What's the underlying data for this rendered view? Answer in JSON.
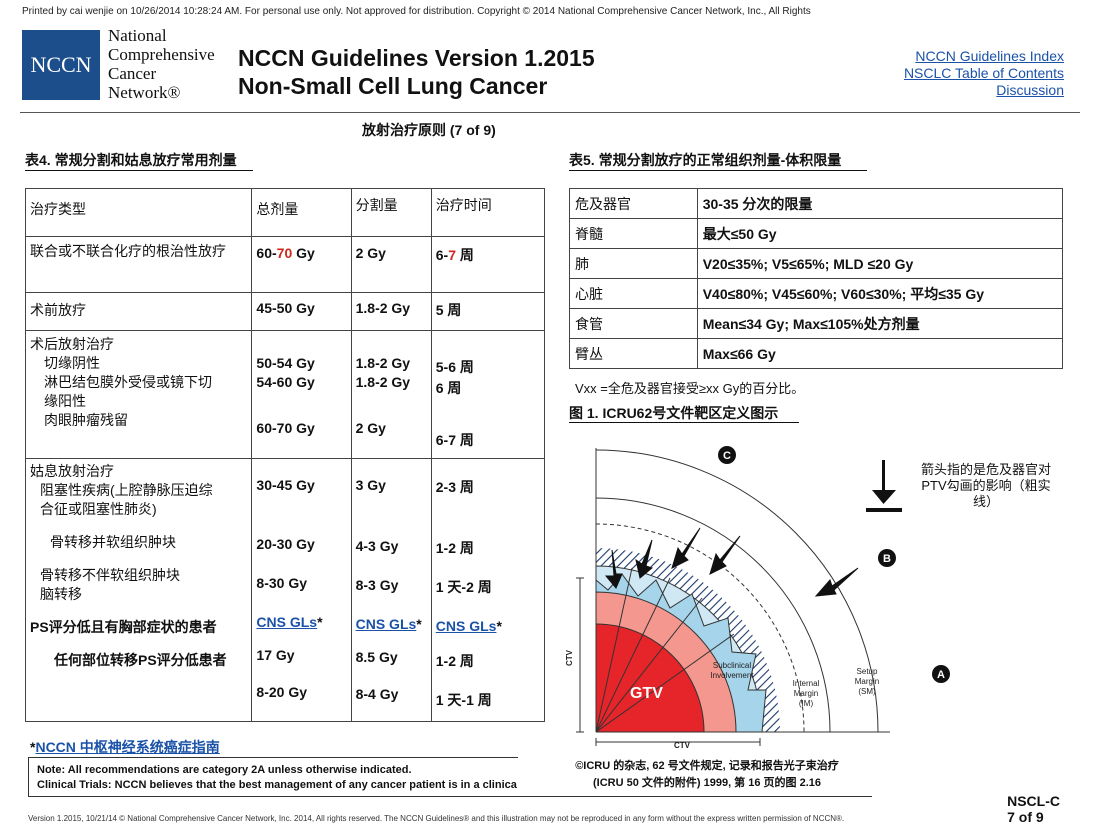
{
  "print_notice": "Printed by cai wenjie on 10/26/2014 10:28:24 AM. For personal use only. Not approved for distribution. Copyright © 2014 National Comprehensive Cancer Network, Inc., All Rights Reserved.",
  "logo": {
    "abbr": "NCCN",
    "lines": [
      "National",
      "Comprehensive",
      "Cancer",
      "Network®"
    ]
  },
  "header": {
    "title_line1": "NCCN Guidelines Version 1.2015",
    "title_line2": "Non-Small Cell Lung Cancer",
    "links": [
      "NCCN Guidelines Index",
      "NSCLC Table of Contents",
      "Discussion"
    ]
  },
  "page_subtitle": "放射治疗原则 (7 of 9)",
  "table4": {
    "title": "表4. 常规分割和姑息放疗常用剂量",
    "headers": [
      "治疗类型",
      "总剂量",
      "分割量",
      "治疗时间"
    ],
    "row1": {
      "type": "联合或不联合化疗的根治性放疗",
      "dose_a": "60-",
      "dose_b": "70",
      "dose_c": " Gy",
      "fraction": "2 Gy",
      "time_a": "6-",
      "time_b": "7",
      "time_c": " 周"
    },
    "row2": {
      "type": "术前放疗",
      "dose": "45-50 Gy",
      "fraction": "1.8-2 Gy",
      "time": "5 周"
    },
    "row3": {
      "type_lines": [
        "术后放射治疗",
        "切缘阴性",
        "淋巴结包膜外受侵或镜下切",
        "缘阳性",
        "肉眼肿瘤残留"
      ],
      "dose_lines": [
        "",
        "50-54 Gy",
        "54-60 Gy",
        "",
        "",
        "60-70 Gy"
      ],
      "fraction_lines": [
        "",
        "1.8-2 Gy",
        "1.8-2 Gy",
        "",
        "",
        "2 Gy"
      ],
      "time_lines": [
        "",
        "5-6 周",
        "6 周",
        "",
        "",
        "6-7 周"
      ]
    },
    "row4": {
      "type_lines": [
        "姑息放射治疗",
        "阻塞性疾病(上腔静脉压迫综",
        "合征或阻塞性肺炎)",
        "",
        "骨转移并软组织肿块",
        "",
        "骨转移不伴软组织肿块",
        "脑转移",
        "",
        "PS评分低且有胸部症状的患者",
        "",
        "任何部位转移PS评分低患者"
      ],
      "dose_lines": [
        "",
        "30-45 Gy",
        "",
        "",
        "20-30 Gy",
        "",
        "8-30 Gy",
        "",
        "CNS GLs",
        "",
        "17 Gy",
        "",
        "8-20 Gy"
      ],
      "fraction_lines": [
        "",
        "3 Gy",
        "",
        "",
        "4-3 Gy",
        "",
        "8-3 Gy",
        "",
        "CNS GLs",
        "",
        "8.5 Gy",
        "",
        "8-4 Gy"
      ],
      "time_lines": [
        "",
        "2-3 周",
        "",
        "",
        "1-2 周",
        "",
        "1 天-2 周",
        "",
        "CNS GLs",
        "",
        "1-2 周",
        "",
        "1 天-1 周"
      ],
      "star": "*"
    }
  },
  "table5": {
    "title": "表5. 常规分割放疗的正常组织剂量-体积限量",
    "headers": [
      "危及器官",
      "30-35 分次的限量"
    ],
    "rows": [
      [
        "脊髓",
        "最大≤50 Gy"
      ],
      [
        "肺",
        "V20≤35%; V5≤65%; MLD ≤20 Gy"
      ],
      [
        "心脏",
        "V40≤80%; V45≤60%; V60≤30%; 平均≤35 Gy"
      ],
      [
        "食管",
        "Mean≤34 Gy; Max≤105%处方剂量"
      ],
      [
        "臂丛",
        "Max≤66 Gy"
      ]
    ],
    "note": "Vxx =全危及器官接受≥xx Gy的百分比。"
  },
  "figure": {
    "title": "图 1. ICRU62号文件靶区定义图示",
    "legend": [
      "箭头指的是危及器官对",
      "PTV勾画的影响（粗实",
      "线）"
    ],
    "labels": {
      "gtv": "GTV",
      "subclinical": [
        "Subclinical",
        "Involvement"
      ],
      "internal": [
        "Internal",
        "Margin",
        "(IM)"
      ],
      "setup": [
        "Setup",
        "Margin",
        "(SM)"
      ],
      "ctv": "CTV",
      "a": "A",
      "b": "B",
      "c": "C"
    },
    "colors": {
      "gtv": "#e5252a",
      "subclinical": "#f4978e",
      "internal": "#a6d4ea",
      "setup": "#cfe8f4"
    }
  },
  "cns_note": {
    "star": "*",
    "text": "NCCN 中枢神经系统癌症指南"
  },
  "note_box": {
    "line1": "Note:  All recommendations are category 2A unless otherwise indicated.",
    "line2": "Clinical Trials: NCCN believes that the best management of any cancer patient is in a clinical trial."
  },
  "credit": {
    "line1": "©ICRU 的杂志, 62 号文件规定, 记录和报告光子束治疗",
    "line2": "(ICRU 50 文件的附件) 1999, 第 16 页的图 2.16"
  },
  "footer": "Version 1.2015, 10/21/14 © National Comprehensive Cancer Network, Inc. 2014, All rights reserved. The NCCN Guidelines® and this illustration may not be reproduced in any form without the express written permission of NCCN®.",
  "page_code": {
    "line1": "NSCL-C",
    "line2": "7 of 9"
  }
}
